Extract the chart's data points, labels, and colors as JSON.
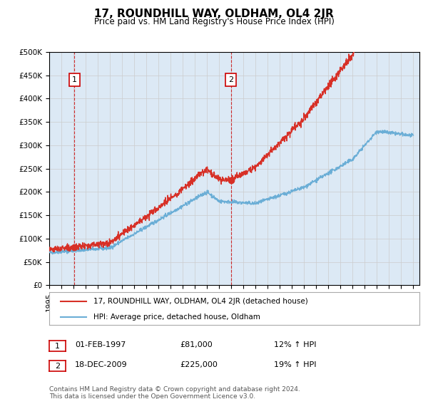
{
  "title": "17, ROUNDHILL WAY, OLDHAM, OL4 2JR",
  "subtitle": "Price paid vs. HM Land Registry's House Price Index (HPI)",
  "legend_line1": "17, ROUNDHILL WAY, OLDHAM, OL4 2JR (detached house)",
  "legend_line2": "HPI: Average price, detached house, Oldham",
  "annotation1_date": "01-FEB-1997",
  "annotation1_price": "£81,000",
  "annotation1_hpi": "12% ↑ HPI",
  "annotation2_date": "18-DEC-2009",
  "annotation2_price": "£225,000",
  "annotation2_hpi": "19% ↑ HPI",
  "footer": "Contains HM Land Registry data © Crown copyright and database right 2024.\nThis data is licensed under the Open Government Licence v3.0.",
  "hpi_color": "#6baed6",
  "price_color": "#d73027",
  "marker_color": "#d73027",
  "background_color": "#dce9f5",
  "plot_bg_color": "#ffffff",
  "grid_color": "#cccccc",
  "annotation_box_color": "#cc0000",
  "dashed_line_color": "#cc0000",
  "ylim": [
    0,
    500000
  ],
  "yticks": [
    0,
    50000,
    100000,
    150000,
    200000,
    250000,
    300000,
    350000,
    400000,
    450000,
    500000
  ],
  "sale1_year": 1997.083,
  "sale1_value": 81000,
  "sale2_year": 2009.958,
  "sale2_value": 225000
}
